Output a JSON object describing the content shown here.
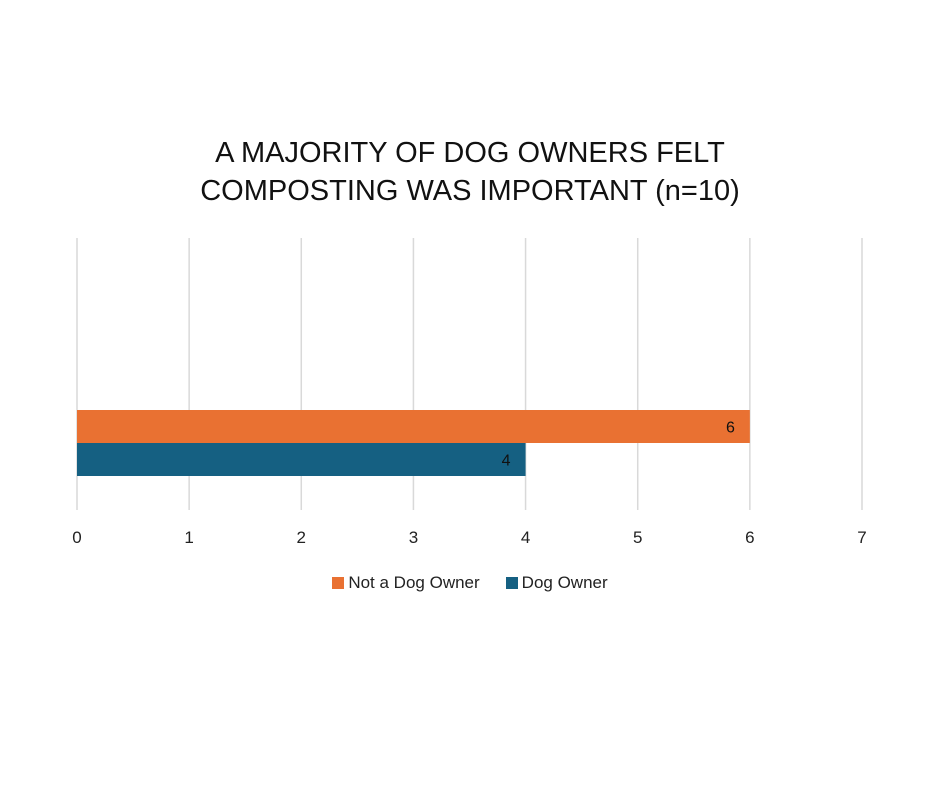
{
  "chart_data": {
    "type": "bar",
    "orientation": "horizontal",
    "title_lines": [
      "A MAJORITY OF DOG OWNERS FELT",
      "COMPOSTING WAS IMPORTANT (n=10)"
    ],
    "xlim": [
      0,
      7
    ],
    "x_ticks": [
      "0",
      "1",
      "2",
      "3",
      "4",
      "5",
      "6",
      "7"
    ],
    "grid": "vertical",
    "legend_position": "bottom",
    "series": [
      {
        "name": "Not a Dog Owner",
        "value": 6,
        "label": "6",
        "color": "#E97132"
      },
      {
        "name": "Dog Owner",
        "value": 4,
        "label": "4",
        "color": "#156082"
      }
    ]
  }
}
